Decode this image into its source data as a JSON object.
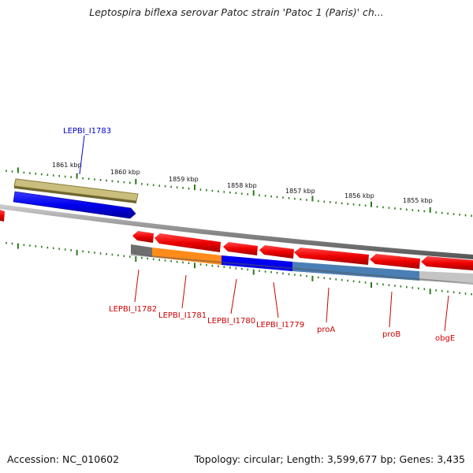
{
  "title": "Leptospira biflexa serovar Patoc strain 'Patoc 1 (Paris)' ch...",
  "accession": "Accession: NC_010602",
  "stats": "Topology: circular; Length: 3,599,677 bp; Genes: 3,435",
  "colors": {
    "forward_strand": "#0000ee",
    "reverse_strand": "#ee0000",
    "tick": "#2a7a1a",
    "backbone": "#8a8a8a",
    "olive_track": "#c8bd78",
    "orange_track": "#ff8c1a",
    "steel_track": "#4a7fb5",
    "gray_track": "#8f8f8f"
  },
  "scale": {
    "unit": "kbp",
    "labels": [
      "1861 kbp",
      "1860 kbp",
      "1859 kbp",
      "1858 kbp",
      "1857 kbp",
      "1856 kbp",
      "1855 kbp"
    ]
  },
  "genes": [
    {
      "name": "LEPBI_I1783",
      "strand": "forward",
      "color": "#0000cc"
    },
    {
      "name": "LEPBI_I1782",
      "strand": "reverse",
      "color": "#cc0000"
    },
    {
      "name": "LEPBI_I1781",
      "strand": "reverse",
      "color": "#cc0000"
    },
    {
      "name": "LEPBI_I1780",
      "strand": "reverse",
      "color": "#cc0000"
    },
    {
      "name": "LEPBI_I1779",
      "strand": "reverse",
      "color": "#cc0000"
    },
    {
      "name": "proA",
      "strand": "reverse",
      "color": "#cc0000"
    },
    {
      "name": "proB",
      "strand": "reverse",
      "color": "#cc0000"
    },
    {
      "name": "obgE",
      "strand": "reverse",
      "color": "#cc0000"
    }
  ]
}
